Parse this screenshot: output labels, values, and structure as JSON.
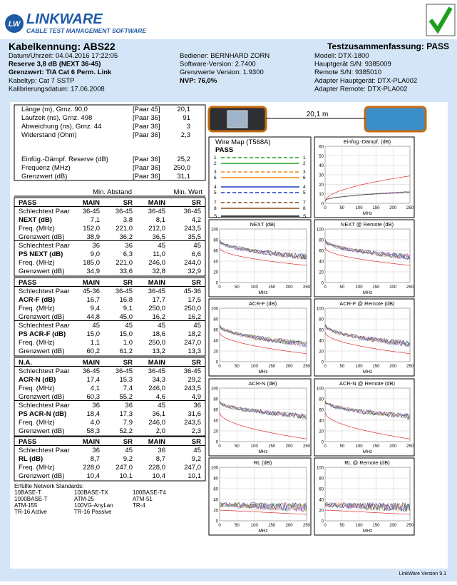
{
  "header": {
    "logo_mark": "LW",
    "logo": "LINKWARE",
    "logo_sub": "CABLE TEST MANAGEMENT SOFTWARE"
  },
  "info": {
    "cable_id": "Kabelkennung: ABS22",
    "summary": "Testzusammenfassung: PASS",
    "col1": [
      "Datum/Uhrzeit: 04.04.2016  17:22:05",
      "Reserve 3,8 dB (NEXT 36-45)",
      "Grenzwert: TIA Cat 6 Perm. Link",
      "Kabeltyp: Cat 7 SSTP",
      "Kalibrierungsdatum: 17.06.2008"
    ],
    "col2": [
      "Bediener: BERNHARD ZORN",
      "Software-Version: 2.7400",
      "Grenzwerte Version: 1.9300",
      "NVP: 76,0%"
    ],
    "col3": [
      "Modell: DTX-1800",
      "Hauptgerät S/N: 9385009",
      "Remote S/N: 9385010",
      "Adapter Hauptgerät: DTX-PLA002",
      "Adapter Remote: DTX-PLA002"
    ]
  },
  "summary_table": {
    "rows": [
      [
        "Länge (m), Grnz. 90,0",
        "[Paar 45]",
        "20,1"
      ],
      [
        "Laufzeit (ns), Grnz. 498",
        "[Paar 36]",
        "91"
      ],
      [
        "Abweichung (ns), Grnz. 44",
        "[Paar 36]",
        "3"
      ],
      [
        "Widerstand (Ohm)",
        "[Paar 36]",
        "2,3"
      ],
      [
        "Einfüg.-Dämpf. Reserve (dB)",
        "[Paar 36]",
        "25,2"
      ],
      [
        "Frequenz (MHz)",
        "[Paar 36]",
        "250,0"
      ],
      [
        "Grenzwert (dB)",
        "[Paar 36]",
        "31,1"
      ]
    ]
  },
  "columns_header": [
    "Min. Abstand",
    "Min. Wert"
  ],
  "sections": [
    {
      "rows": [
        [
          "PASS",
          "MAIN",
          "SR",
          "MAIN",
          "SR"
        ],
        [
          "Schlechtest Paar",
          "36-45",
          "36-45",
          "36-45",
          "36-45"
        ],
        [
          "NEXT (dB)",
          "7,1",
          "3,8",
          "8,1",
          "4,2"
        ],
        [
          "Freq. (MHz)",
          "152,0",
          "221,0",
          "212,0",
          "243,5"
        ],
        [
          "Grenzwert (dB)",
          "38,9",
          "36,2",
          "36,5",
          "35,5"
        ],
        [
          "Schlechtest Paar",
          "36",
          "36",
          "45",
          "45"
        ],
        [
          "PS NEXT (dB)",
          "9,0",
          "6,3",
          "11,0",
          "6,6"
        ],
        [
          "Freq. (MHz)",
          "185,0",
          "221,0",
          "246,0",
          "244,0"
        ],
        [
          "Grenzwert (dB)",
          "34,9",
          "33,6",
          "32,8",
          "32,9"
        ]
      ]
    },
    {
      "rows": [
        [
          "PASS",
          "MAIN",
          "SR",
          "MAIN",
          "SR"
        ],
        [
          "Schlechtest Paar",
          "45-36",
          "36-45",
          "36-45",
          "45-36"
        ],
        [
          "ACR-F (dB)",
          "16,7",
          "16,8",
          "17,7",
          "17,5"
        ],
        [
          "Freq. (MHz)",
          "9,4",
          "9,1",
          "250,0",
          "250,0"
        ],
        [
          "Grenzwert (dB)",
          "44,8",
          "45,0",
          "16,2",
          "16,2"
        ],
        [
          "Schlechtest Paar",
          "45",
          "45",
          "45",
          "45"
        ],
        [
          "PS ACR-F (dB)",
          "15,0",
          "15,0",
          "18,6",
          "18,2"
        ],
        [
          "Freq. (MHz)",
          "1,1",
          "1,0",
          "250,0",
          "247,0"
        ],
        [
          "Grenzwert (dB)",
          "60,2",
          "61,2",
          "13,2",
          "13,3"
        ]
      ]
    },
    {
      "rows": [
        [
          "N.A.",
          "MAIN",
          "SR",
          "MAIN",
          "SR"
        ],
        [
          "Schlechtest Paar",
          "36-45",
          "36-45",
          "36-45",
          "36-45"
        ],
        [
          "ACR-N (dB)",
          "17,4",
          "15,3",
          "34,3",
          "29,2"
        ],
        [
          "Freq. (MHz)",
          "4,1",
          "7,4",
          "246,0",
          "243,5"
        ],
        [
          "Grenzwert (dB)",
          "60,3",
          "55,2",
          "4,6",
          "4,9"
        ],
        [
          "Schlechtest Paar",
          "36",
          "36",
          "45",
          "36"
        ],
        [
          "PS ACR-N (dB)",
          "18,4",
          "17,3",
          "36,1",
          "31,6"
        ],
        [
          "Freq. (MHz)",
          "4,0",
          "7,9",
          "246,0",
          "243,5"
        ],
        [
          "Grenzwert (dB)",
          "58,3",
          "52,2",
          "2,0",
          "2,3"
        ]
      ]
    },
    {
      "rows": [
        [
          "PASS",
          "MAIN",
          "SR",
          "MAIN",
          "SR"
        ],
        [
          "Schlechtest Paar",
          "36",
          "45",
          "36",
          "45"
        ],
        [
          "RL (dB)",
          "8,7",
          "9,2",
          "8,7",
          "9,2"
        ],
        [
          "Freq. (MHz)",
          "228,0",
          "247,0",
          "228,0",
          "247,0"
        ],
        [
          "Grenzwert (dB)",
          "10,4",
          "10,1",
          "10,4",
          "10,1"
        ]
      ]
    }
  ],
  "standards": {
    "title": "Erfüllte Network Standards:",
    "items": [
      "10BASE-T",
      "100BASE-TX",
      "100BASE-T4",
      "1000BASE-T",
      "ATM-25",
      "ATM-51",
      "ATM-155",
      "100VG-AnyLan",
      "TR-4",
      "TR-16 Active",
      "TR-16 Passive"
    ]
  },
  "device": {
    "length": "20,1 m"
  },
  "wiremap": {
    "title": "Wire Map (T568A)",
    "result": "PASS",
    "pins": [
      "1",
      "2",
      "3",
      "6",
      "4",
      "5",
      "7",
      "8",
      "S"
    ]
  },
  "charts": [
    {
      "title": "Einfüg.-Dämpf. (dB)",
      "yticks": [
        0,
        10,
        20,
        30,
        40,
        50,
        60
      ],
      "xticks": [
        0,
        50,
        100,
        150,
        200,
        250
      ],
      "xlabel": "MHz"
    },
    {
      "title": "NEXT (dB)",
      "yticks": [
        0,
        20,
        40,
        60,
        80,
        100
      ],
      "xticks": [
        0,
        50,
        100,
        150,
        200,
        250
      ],
      "xlabel": "MHz"
    },
    {
      "title": "NEXT @ Remote (dB)",
      "yticks": [
        0,
        20,
        40,
        60,
        80,
        100
      ],
      "xticks": [
        0,
        50,
        100,
        150,
        200,
        250
      ],
      "xlabel": "MHz"
    },
    {
      "title": "ACR-F (dB)",
      "yticks": [
        0,
        20,
        40,
        60,
        80,
        100
      ],
      "xticks": [
        0,
        50,
        100,
        150,
        200,
        250
      ],
      "xlabel": "MHz"
    },
    {
      "title": "ACR-F @ Remote (dB)",
      "yticks": [
        0,
        20,
        40,
        60,
        80,
        100
      ],
      "xticks": [
        0,
        50,
        100,
        150,
        200,
        250
      ],
      "xlabel": "MHz"
    },
    {
      "title": "ACR-N (dB)",
      "yticks": [
        0,
        20,
        40,
        60,
        80,
        100
      ],
      "xticks": [
        0,
        50,
        100,
        150,
        200,
        250
      ],
      "xlabel": "MHz"
    },
    {
      "title": "ACR-N @ Remote (dB)",
      "yticks": [
        0,
        20,
        40,
        60,
        80,
        100
      ],
      "xticks": [
        0,
        50,
        100,
        150,
        200,
        250
      ],
      "xlabel": "MHz"
    },
    {
      "title": "RL (dB)",
      "yticks": [
        0,
        20,
        40,
        60,
        80,
        100
      ],
      "xticks": [
        0,
        50,
        100,
        150,
        200,
        250
      ],
      "xlabel": "MHz"
    },
    {
      "title": "RL @ Remote (dB)",
      "yticks": [
        0,
        20,
        40,
        60,
        80,
        100
      ],
      "xticks": [
        0,
        50,
        100,
        150,
        200,
        250
      ],
      "xlabel": "MHz"
    }
  ],
  "footer": "LinkWare Version 9.1"
}
